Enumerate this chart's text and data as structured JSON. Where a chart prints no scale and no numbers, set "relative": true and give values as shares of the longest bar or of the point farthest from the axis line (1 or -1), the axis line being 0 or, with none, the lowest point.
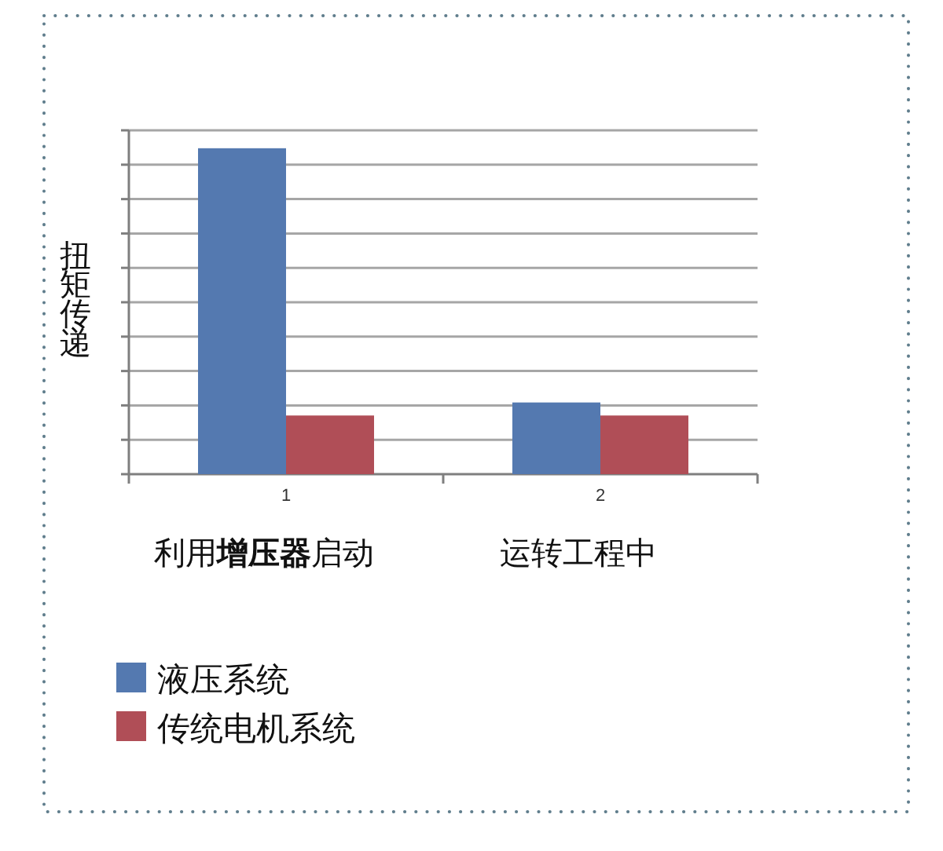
{
  "chart_data": {
    "type": "bar",
    "ylabel": "扭矩传递",
    "categories": [
      "1",
      "2"
    ],
    "annotations": [
      "利用**增压器**启动",
      "运转工程中"
    ],
    "series": [
      {
        "name": "液压系统",
        "color": "#5479b0",
        "values": [
          1,
          0.22
        ]
      },
      {
        "name": "传统电机系统",
        "color": "#b04e57",
        "values": [
          0.18,
          0.18
        ]
      }
    ],
    "relative": true,
    "grid": "y",
    "legend": "bottom left"
  }
}
